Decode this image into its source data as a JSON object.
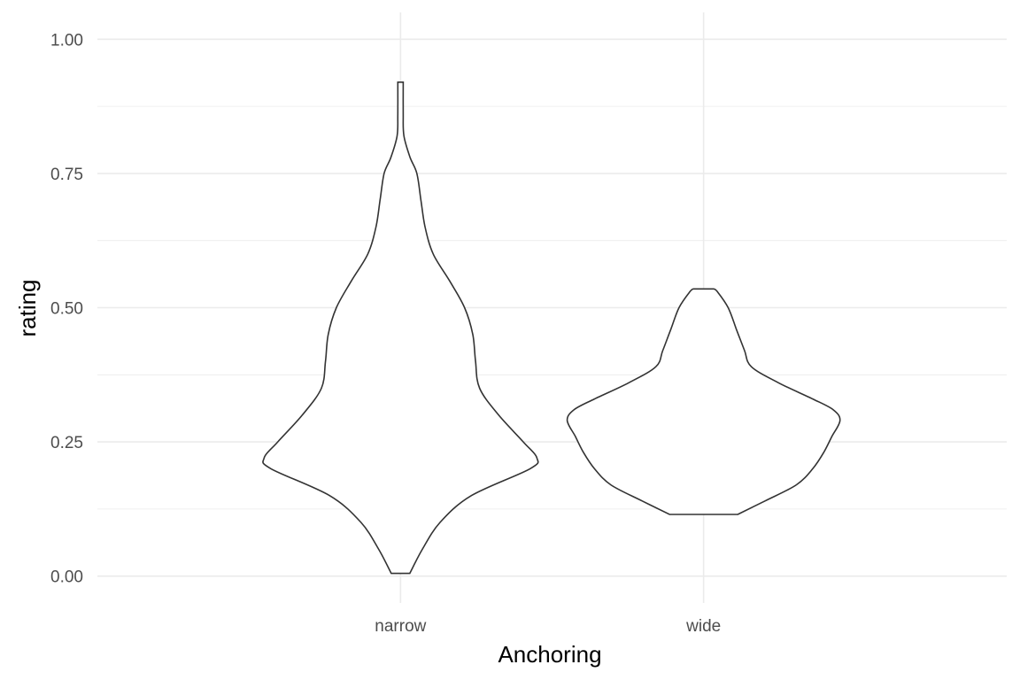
{
  "chart_data": {
    "type": "violin",
    "xlabel": "Anchoring",
    "ylabel": "rating",
    "categories": [
      "narrow",
      "wide"
    ],
    "ylim": [
      -0.05,
      1.05
    ],
    "yticks": [
      0.0,
      0.25,
      0.5,
      0.75,
      1.0
    ],
    "ytick_labels": [
      "0.00",
      "0.25",
      "0.50",
      "0.75",
      "1.00"
    ],
    "grid": true,
    "series": [
      {
        "category": "narrow",
        "range": [
          0.005,
          0.92
        ],
        "profile": [
          [
            0.005,
            0.068
          ],
          [
            0.05,
            0.16
          ],
          [
            0.1,
            0.29
          ],
          [
            0.15,
            0.52
          ],
          [
            0.2,
            0.95
          ],
          [
            0.22,
            1.0
          ],
          [
            0.25,
            0.9
          ],
          [
            0.3,
            0.72
          ],
          [
            0.35,
            0.58
          ],
          [
            0.4,
            0.55
          ],
          [
            0.45,
            0.53
          ],
          [
            0.5,
            0.47
          ],
          [
            0.55,
            0.36
          ],
          [
            0.6,
            0.24
          ],
          [
            0.65,
            0.18
          ],
          [
            0.7,
            0.15
          ],
          [
            0.75,
            0.12
          ],
          [
            0.78,
            0.07
          ],
          [
            0.82,
            0.025
          ],
          [
            0.86,
            0.02
          ],
          [
            0.92,
            0.02
          ]
        ]
      },
      {
        "category": "wide",
        "range": [
          0.115,
          0.535
        ],
        "profile": [
          [
            0.115,
            0.25
          ],
          [
            0.14,
            0.45
          ],
          [
            0.17,
            0.68
          ],
          [
            0.2,
            0.8
          ],
          [
            0.23,
            0.88
          ],
          [
            0.26,
            0.94
          ],
          [
            0.29,
            1.0
          ],
          [
            0.31,
            0.95
          ],
          [
            0.33,
            0.8
          ],
          [
            0.36,
            0.55
          ],
          [
            0.39,
            0.35
          ],
          [
            0.42,
            0.3
          ],
          [
            0.46,
            0.24
          ],
          [
            0.5,
            0.18
          ],
          [
            0.53,
            0.1
          ],
          [
            0.535,
            0.075
          ]
        ]
      }
    ]
  }
}
